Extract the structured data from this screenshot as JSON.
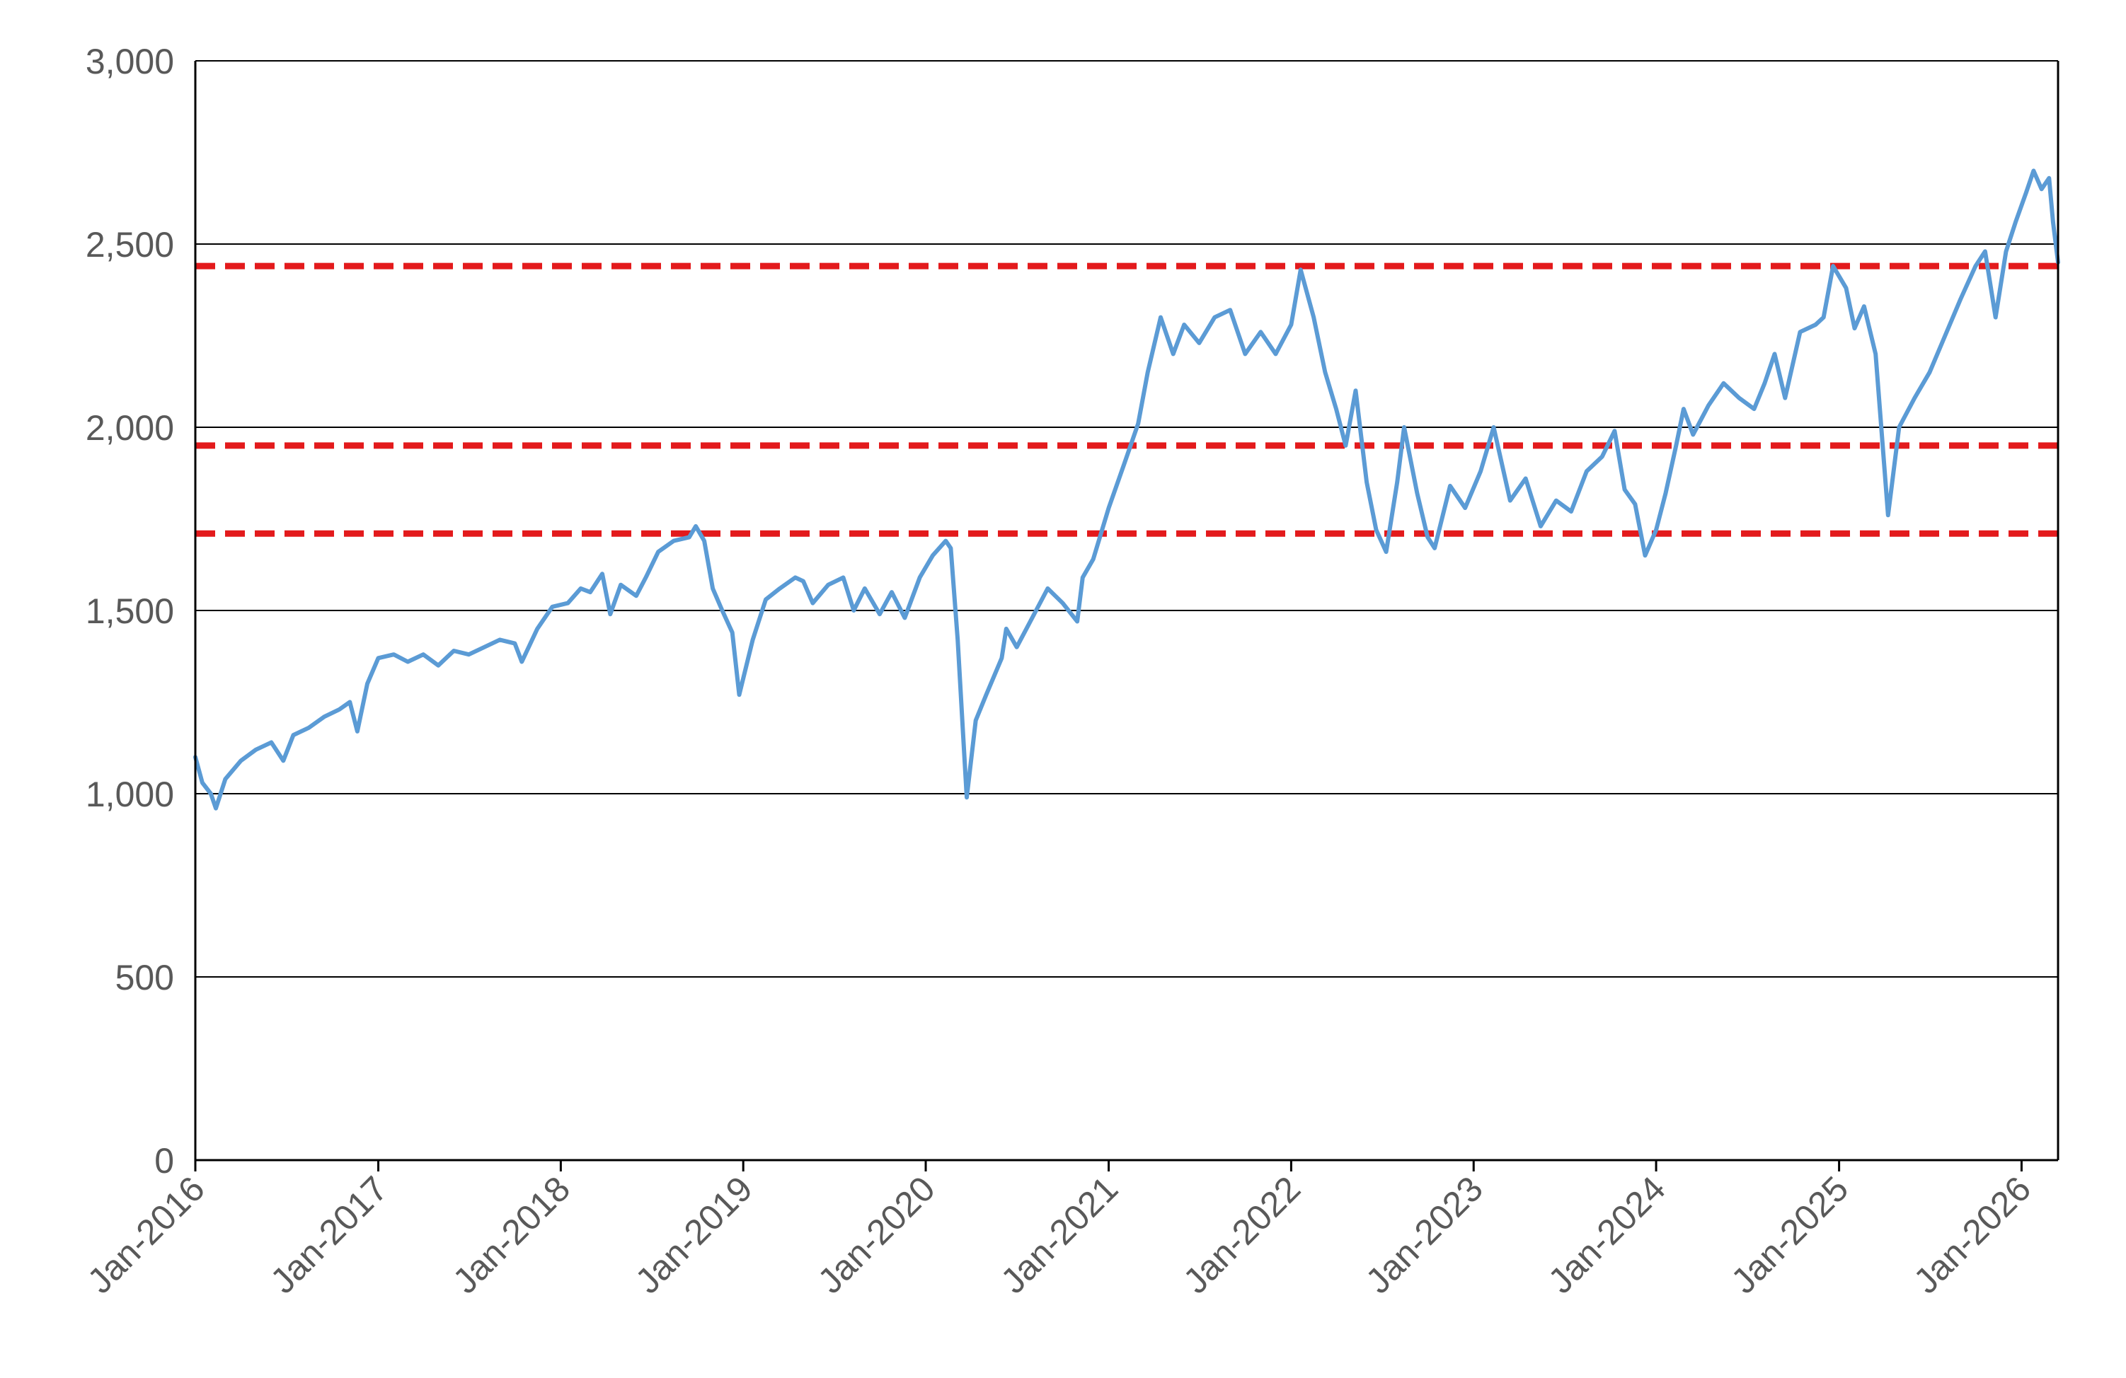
{
  "chart_data": {
    "type": "line",
    "title": "",
    "xlabel": "",
    "ylabel": "",
    "ylim": [
      0,
      3000
    ],
    "xlim": [
      "2016-01-01",
      "2026-03-15"
    ],
    "yticks": [
      {
        "value": 0,
        "label": "0"
      },
      {
        "value": 500,
        "label": "500"
      },
      {
        "value": 1000,
        "label": "1,000"
      },
      {
        "value": 1500,
        "label": "1,500"
      },
      {
        "value": 2000,
        "label": "2,000"
      },
      {
        "value": 2500,
        "label": "2,500"
      },
      {
        "value": 3000,
        "label": "3,000"
      }
    ],
    "xticks": [
      {
        "date": "2016-01-01",
        "label": "Jan-2016"
      },
      {
        "date": "2017-01-01",
        "label": "Jan-2017"
      },
      {
        "date": "2018-01-01",
        "label": "Jan-2018"
      },
      {
        "date": "2019-01-01",
        "label": "Jan-2019"
      },
      {
        "date": "2020-01-01",
        "label": "Jan-2020"
      },
      {
        "date": "2021-01-01",
        "label": "Jan-2021"
      },
      {
        "date": "2022-01-01",
        "label": "Jan-2022"
      },
      {
        "date": "2023-01-01",
        "label": "Jan-2023"
      },
      {
        "date": "2024-01-01",
        "label": "Jan-2024"
      },
      {
        "date": "2025-01-01",
        "label": "Jan-2025"
      },
      {
        "date": "2026-01-01",
        "label": "Jan-2026"
      }
    ],
    "grid": true,
    "legend": "none",
    "reference_lines": [
      {
        "value": 2440,
        "color": "#e31a1c",
        "style": "dashed"
      },
      {
        "value": 1950,
        "color": "#e31a1c",
        "style": "dashed"
      },
      {
        "value": 1710,
        "color": "#e31a1c",
        "style": "dashed"
      }
    ],
    "series": [
      {
        "color": "#5b9bd5",
        "points": [
          [
            "2016-01-01",
            1100
          ],
          [
            "2016-01-15",
            1030
          ],
          [
            "2016-02-01",
            1000
          ],
          [
            "2016-02-11",
            960
          ],
          [
            "2016-03-01",
            1040
          ],
          [
            "2016-04-01",
            1090
          ],
          [
            "2016-05-01",
            1120
          ],
          [
            "2016-06-01",
            1140
          ],
          [
            "2016-06-25",
            1090
          ],
          [
            "2016-07-15",
            1160
          ],
          [
            "2016-08-15",
            1180
          ],
          [
            "2016-09-15",
            1210
          ],
          [
            "2016-10-15",
            1230
          ],
          [
            "2016-11-05",
            1250
          ],
          [
            "2016-11-20",
            1170
          ],
          [
            "2016-12-10",
            1300
          ],
          [
            "2017-01-01",
            1370
          ],
          [
            "2017-02-01",
            1380
          ],
          [
            "2017-03-01",
            1360
          ],
          [
            "2017-04-01",
            1380
          ],
          [
            "2017-05-01",
            1350
          ],
          [
            "2017-06-01",
            1390
          ],
          [
            "2017-07-01",
            1380
          ],
          [
            "2017-08-01",
            1400
          ],
          [
            "2017-09-01",
            1420
          ],
          [
            "2017-10-01",
            1410
          ],
          [
            "2017-10-15",
            1360
          ],
          [
            "2017-11-15",
            1450
          ],
          [
            "2017-12-15",
            1510
          ],
          [
            "2018-01-15",
            1520
          ],
          [
            "2018-02-10",
            1560
          ],
          [
            "2018-03-01",
            1550
          ],
          [
            "2018-03-25",
            1600
          ],
          [
            "2018-04-10",
            1490
          ],
          [
            "2018-05-01",
            1570
          ],
          [
            "2018-06-01",
            1540
          ],
          [
            "2018-06-20",
            1590
          ],
          [
            "2018-07-15",
            1660
          ],
          [
            "2018-08-15",
            1690
          ],
          [
            "2018-09-15",
            1700
          ],
          [
            "2018-09-28",
            1730
          ],
          [
            "2018-10-15",
            1690
          ],
          [
            "2018-11-01",
            1560
          ],
          [
            "2018-11-20",
            1500
          ],
          [
            "2018-12-10",
            1440
          ],
          [
            "2018-12-24",
            1270
          ],
          [
            "2019-01-20",
            1420
          ],
          [
            "2019-02-15",
            1530
          ],
          [
            "2019-03-15",
            1560
          ],
          [
            "2019-04-15",
            1590
          ],
          [
            "2019-05-01",
            1580
          ],
          [
            "2019-05-20",
            1520
          ],
          [
            "2019-06-20",
            1570
          ],
          [
            "2019-07-20",
            1590
          ],
          [
            "2019-08-10",
            1500
          ],
          [
            "2019-09-01",
            1560
          ],
          [
            "2019-10-01",
            1490
          ],
          [
            "2019-10-25",
            1550
          ],
          [
            "2019-11-20",
            1480
          ],
          [
            "2019-12-20",
            1590
          ],
          [
            "2020-01-15",
            1650
          ],
          [
            "2020-02-10",
            1690
          ],
          [
            "2020-02-20",
            1670
          ],
          [
            "2020-03-05",
            1420
          ],
          [
            "2020-03-15",
            1180
          ],
          [
            "2020-03-23",
            990
          ],
          [
            "2020-04-10",
            1200
          ],
          [
            "2020-05-01",
            1270
          ],
          [
            "2020-06-01",
            1370
          ],
          [
            "2020-06-10",
            1450
          ],
          [
            "2020-07-01",
            1400
          ],
          [
            "2020-08-01",
            1480
          ],
          [
            "2020-09-01",
            1560
          ],
          [
            "2020-10-01",
            1520
          ],
          [
            "2020-10-30",
            1470
          ],
          [
            "2020-11-10",
            1590
          ],
          [
            "2020-12-01",
            1640
          ],
          [
            "2021-01-01",
            1780
          ],
          [
            "2021-02-01",
            1900
          ],
          [
            "2021-03-01",
            2010
          ],
          [
            "2021-03-20",
            2150
          ],
          [
            "2021-04-15",
            2300
          ],
          [
            "2021-05-10",
            2200
          ],
          [
            "2021-06-01",
            2280
          ],
          [
            "2021-07-01",
            2230
          ],
          [
            "2021-08-01",
            2300
          ],
          [
            "2021-09-01",
            2320
          ],
          [
            "2021-10-01",
            2200
          ],
          [
            "2021-11-01",
            2260
          ],
          [
            "2021-12-01",
            2200
          ],
          [
            "2022-01-01",
            2280
          ],
          [
            "2022-01-20",
            2430
          ],
          [
            "2022-02-15",
            2300
          ],
          [
            "2022-03-10",
            2150
          ],
          [
            "2022-04-01",
            2050
          ],
          [
            "2022-04-20",
            1950
          ],
          [
            "2022-05-10",
            2100
          ],
          [
            "2022-06-01",
            1850
          ],
          [
            "2022-06-20",
            1720
          ],
          [
            "2022-07-10",
            1660
          ],
          [
            "2022-08-01",
            1850
          ],
          [
            "2022-08-15",
            2000
          ],
          [
            "2022-09-10",
            1820
          ],
          [
            "2022-10-01",
            1700
          ],
          [
            "2022-10-15",
            1670
          ],
          [
            "2022-11-15",
            1840
          ],
          [
            "2022-12-15",
            1780
          ],
          [
            "2023-01-15",
            1880
          ],
          [
            "2023-02-10",
            2000
          ],
          [
            "2023-03-15",
            1800
          ],
          [
            "2023-04-15",
            1860
          ],
          [
            "2023-05-15",
            1730
          ],
          [
            "2023-06-15",
            1800
          ],
          [
            "2023-07-15",
            1770
          ],
          [
            "2023-08-15",
            1880
          ],
          [
            "2023-09-15",
            1920
          ],
          [
            "2023-10-10",
            1990
          ],
          [
            "2023-10-30",
            1830
          ],
          [
            "2023-11-20",
            1790
          ],
          [
            "2023-12-10",
            1650
          ],
          [
            "2024-01-01",
            1720
          ],
          [
            "2024-01-20",
            1820
          ],
          [
            "2024-02-10",
            1950
          ],
          [
            "2024-02-25",
            2050
          ],
          [
            "2024-03-15",
            1980
          ],
          [
            "2024-04-15",
            2060
          ],
          [
            "2024-05-15",
            2120
          ],
          [
            "2024-06-15",
            2080
          ],
          [
            "2024-07-15",
            2050
          ],
          [
            "2024-08-05",
            2120
          ],
          [
            "2024-08-25",
            2200
          ],
          [
            "2024-09-15",
            2080
          ],
          [
            "2024-10-15",
            2260
          ],
          [
            "2024-11-15",
            2280
          ],
          [
            "2024-12-01",
            2300
          ],
          [
            "2024-12-20",
            2440
          ],
          [
            "2025-01-15",
            2380
          ],
          [
            "2025-02-01",
            2270
          ],
          [
            "2025-02-20",
            2330
          ],
          [
            "2025-03-15",
            2200
          ],
          [
            "2025-04-01",
            1900
          ],
          [
            "2025-04-09",
            1760
          ],
          [
            "2025-05-01",
            2000
          ],
          [
            "2025-06-01",
            2080
          ],
          [
            "2025-07-01",
            2150
          ],
          [
            "2025-08-01",
            2250
          ],
          [
            "2025-09-01",
            2350
          ],
          [
            "2025-10-01",
            2440
          ],
          [
            "2025-10-20",
            2480
          ],
          [
            "2025-11-10",
            2300
          ],
          [
            "2025-12-01",
            2480
          ],
          [
            "2025-12-20",
            2560
          ],
          [
            "2026-01-10",
            2640
          ],
          [
            "2026-01-25",
            2700
          ],
          [
            "2026-02-10",
            2650
          ],
          [
            "2026-02-25",
            2680
          ],
          [
            "2026-03-05",
            2560
          ],
          [
            "2026-03-15",
            2450
          ]
        ]
      }
    ]
  }
}
